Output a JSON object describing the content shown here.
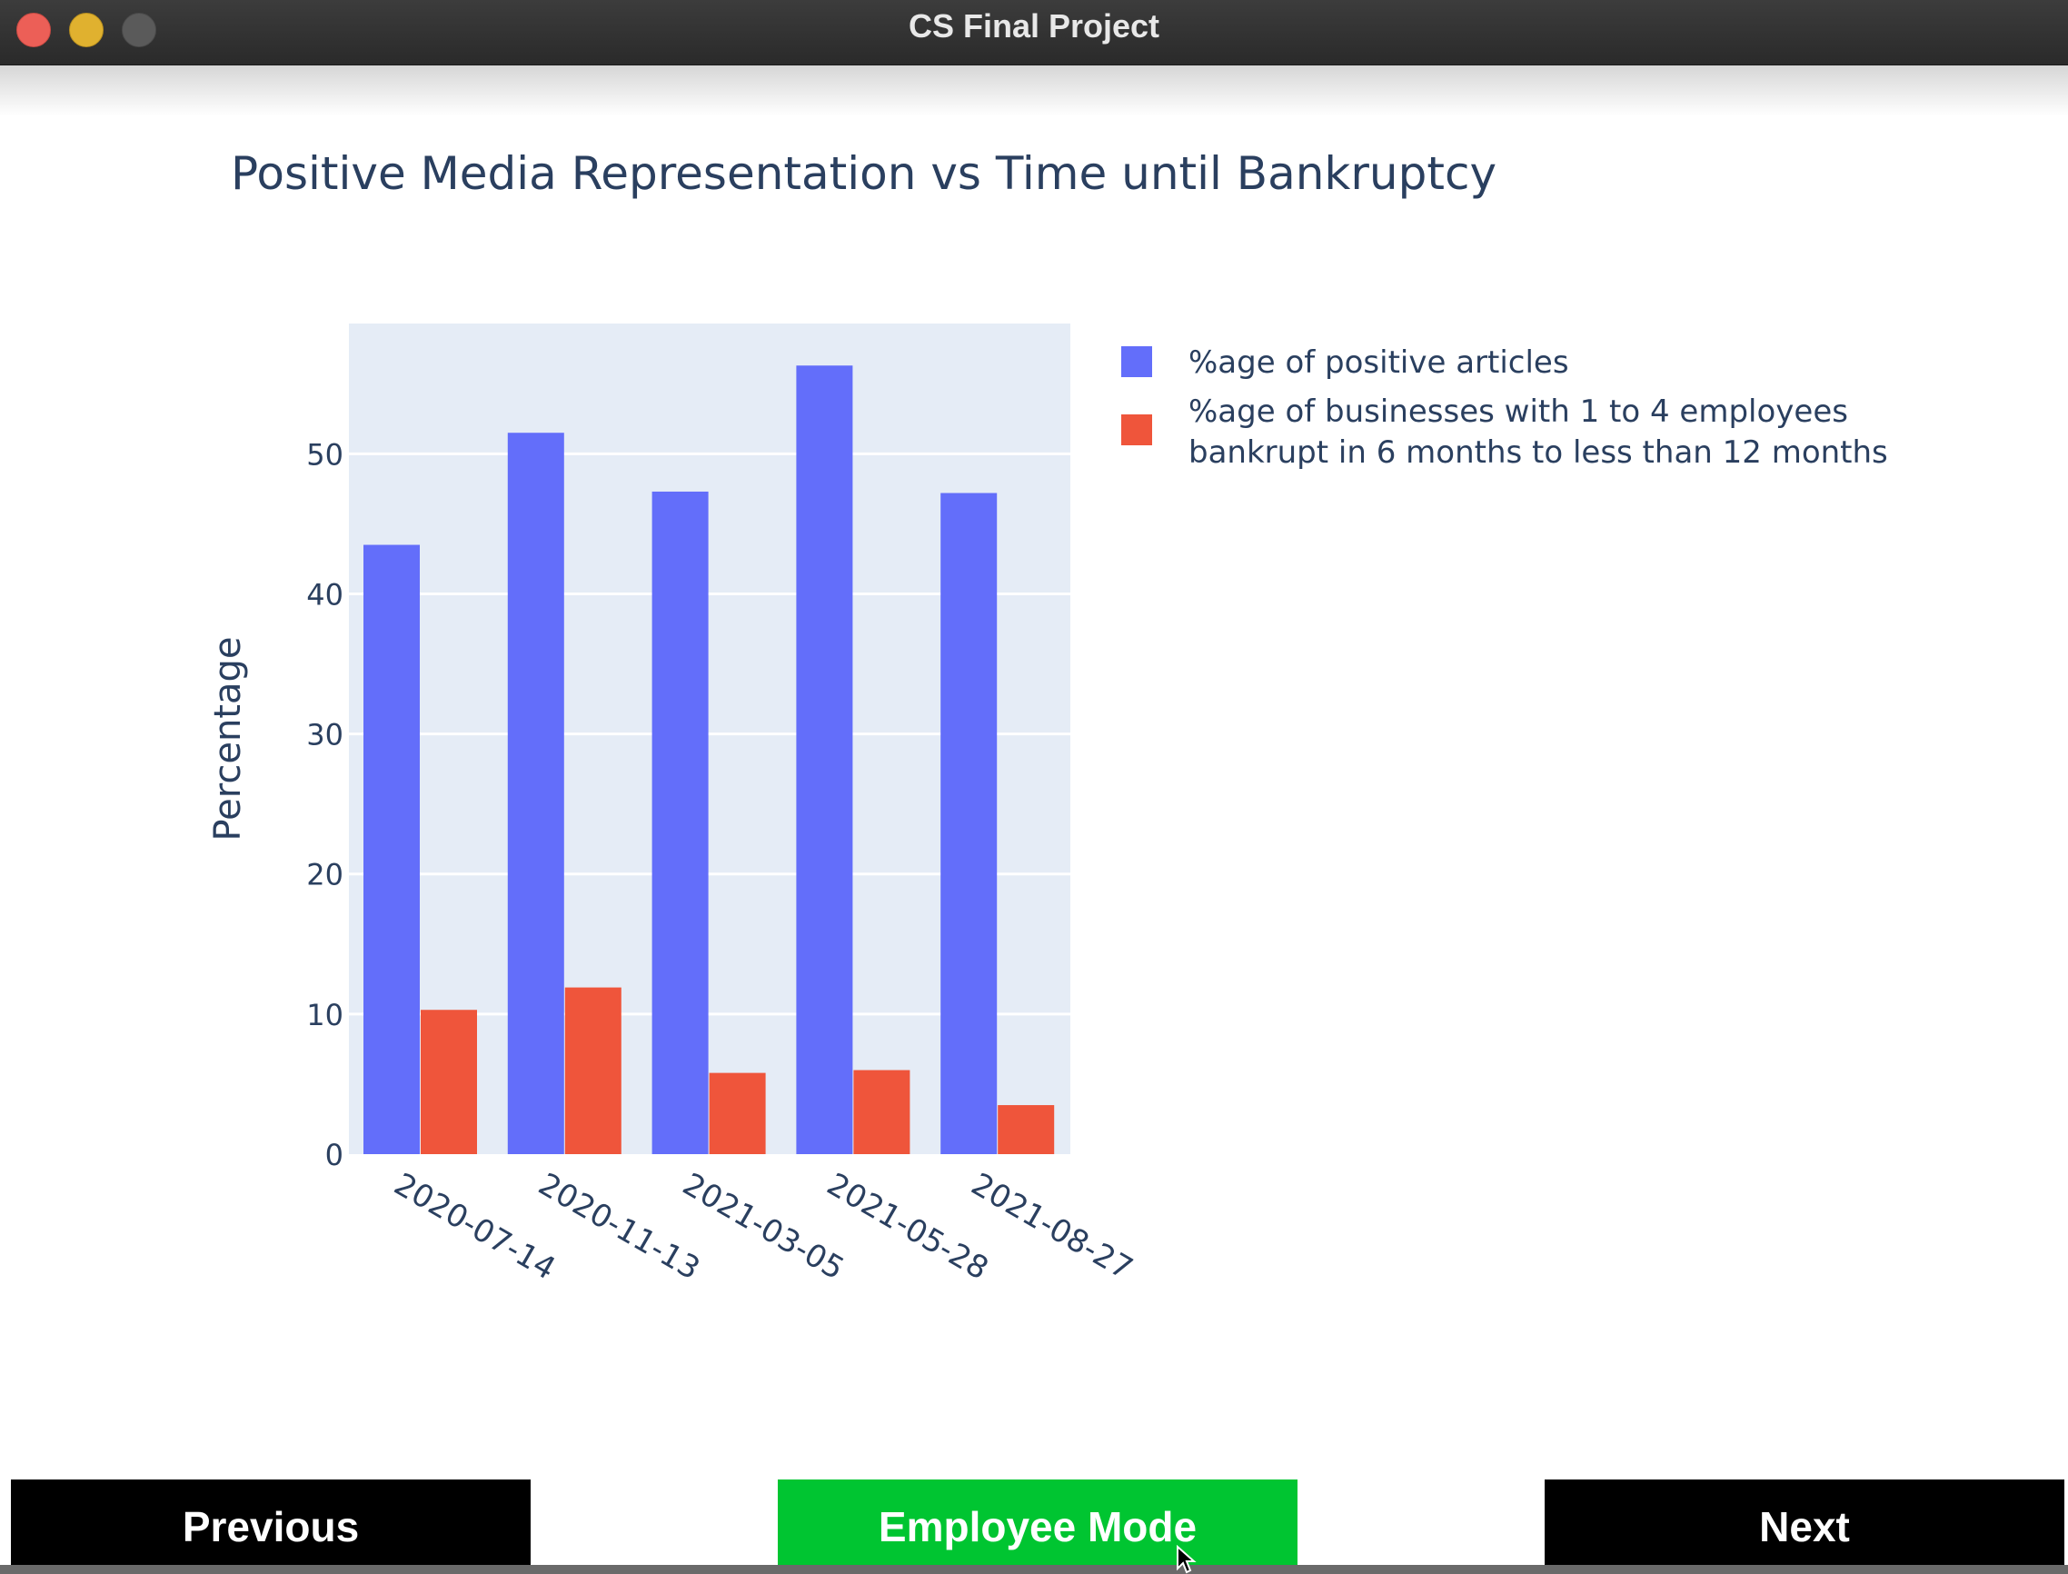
{
  "window": {
    "title": "CS Final Project"
  },
  "buttons": {
    "previous": "Previous",
    "employee_mode": "Employee Mode",
    "next": "Next"
  },
  "colors": {
    "series1": "#636efa",
    "series2": "#ef553b",
    "plot_bg": "#e5ecf6",
    "grid": "#ffffff",
    "text": "#2a3f5f",
    "employee_mode_button": "#00c531"
  },
  "chart_data": {
    "type": "bar",
    "title": "Positive Media Representation vs Time until Bankruptcy",
    "xlabel": "",
    "ylabel": "Percentage",
    "categories": [
      "2020-07-14",
      "2020-11-13",
      "2021-03-05",
      "2021-05-28",
      "2021-08-27"
    ],
    "series": [
      {
        "name": "%age of positive articles",
        "values": [
          43.5,
          51.5,
          47.3,
          56.3,
          47.2
        ]
      },
      {
        "name_lines": [
          "%age of businesses with 1 to 4 employees",
          " bankrupt in 6 months to less than 12 months"
        ],
        "values": [
          10.3,
          11.9,
          5.8,
          6.0,
          3.5
        ]
      }
    ],
    "yticks": [
      0,
      10,
      20,
      30,
      40,
      50
    ],
    "ylim": [
      0,
      59.3
    ],
    "grid": true,
    "legend_position": "right"
  }
}
